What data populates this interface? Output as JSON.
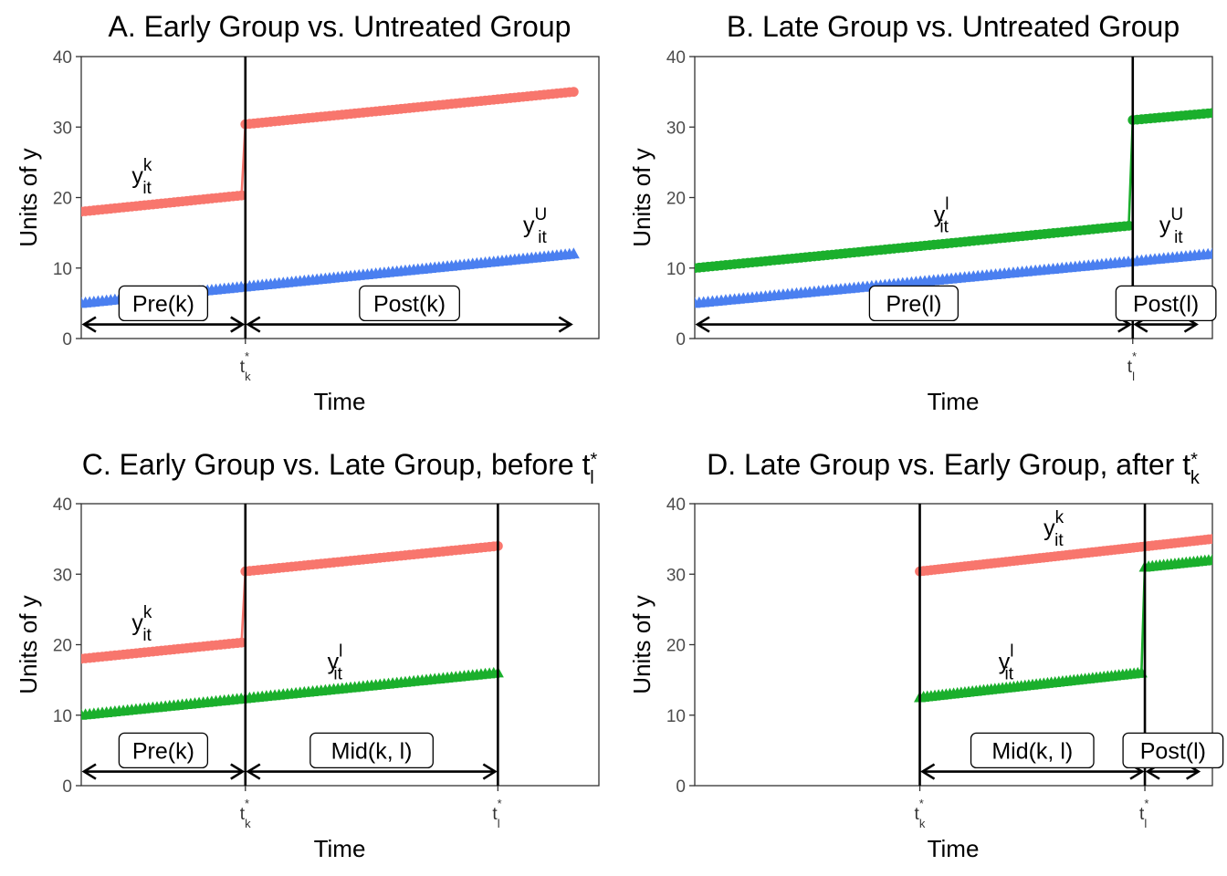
{
  "colors": {
    "early": "#F8766D",
    "late": "#1AAF2C",
    "untreated": "#4A7FF0"
  },
  "panels": [
    {
      "id": "A",
      "title": "A. Early Group vs. Untreated Group",
      "title_sup": "",
      "title_sub": "",
      "xlabel": "Time",
      "ylabel": "Units of y",
      "tick_marks": [
        {
          "t": 13,
          "main": "t",
          "sup": "*",
          "sub": "k"
        }
      ],
      "vlines": [
        13
      ]
    },
    {
      "id": "B",
      "title": "B. Late Group vs. Untreated Group",
      "title_sup": "",
      "title_sub": "",
      "xlabel": "Time",
      "ylabel": "Units of y",
      "tick_marks": [
        {
          "t": 33,
          "main": "t",
          "sup": "*",
          "sub": "l"
        }
      ],
      "vlines": [
        33
      ]
    },
    {
      "id": "C",
      "title": "C. Early Group vs. Late Group, before t",
      "title_sup": "*",
      "title_sub": "l",
      "xlabel": "Time",
      "ylabel": "Units of y",
      "tick_marks": [
        {
          "t": 13,
          "main": "t",
          "sup": "*",
          "sub": "k"
        },
        {
          "t": 33,
          "main": "t",
          "sup": "*",
          "sub": "l"
        }
      ],
      "vlines": [
        13,
        33
      ]
    },
    {
      "id": "D",
      "title": "D. Late Group vs. Early Group, after t",
      "title_sup": "*",
      "title_sub": "k",
      "xlabel": "Time",
      "ylabel": "Units of y",
      "tick_marks": [
        {
          "t": 13,
          "main": "t",
          "sup": "*",
          "sub": "k"
        },
        {
          "t": 33,
          "main": "t",
          "sup": "*",
          "sub": "l"
        }
      ],
      "vlines": [
        13,
        33
      ]
    }
  ],
  "chart_data": [
    {
      "type": "line",
      "title": "A. Early Group vs. Untreated Group",
      "xlabel": "Time",
      "ylabel": "Units of y",
      "xlim": [
        0,
        41
      ],
      "ylim": [
        0,
        40
      ],
      "y_ticks": [
        0,
        10,
        20,
        30,
        40
      ],
      "grid": false,
      "series": [
        {
          "group": "early",
          "marker": "circle",
          "label": "y",
          "label_sub": "it",
          "label_sup": "k",
          "label_at": [
            4,
            22
          ],
          "points": [
            [
              0,
              18
            ],
            [
              12.7,
              20.3
            ],
            [
              13,
              30.4
            ],
            [
              39,
              35
            ]
          ]
        },
        {
          "group": "untreated",
          "marker": "triangle",
          "label": "y",
          "label_sub": "it",
          "label_sup": "U",
          "label_at": [
            35,
            15
          ],
          "points": [
            [
              0,
              5
            ],
            [
              39,
              12
            ]
          ]
        }
      ],
      "periods": [
        {
          "label": "Pre(k)",
          "from": 0,
          "to": 13
        },
        {
          "label": "Post(k)",
          "from": 13,
          "to": 39
        }
      ]
    },
    {
      "type": "line",
      "title": "B. Late Group vs. Untreated Group",
      "xlabel": "Time",
      "ylabel": "Units of y",
      "xlim": [
        0,
        39
      ],
      "ylim": [
        0,
        40
      ],
      "y_ticks": [
        0,
        10,
        20,
        30,
        40
      ],
      "grid": false,
      "series": [
        {
          "group": "late",
          "marker": "circle",
          "label": "y",
          "label_sub": "it",
          "label_sup": "l",
          "label_at": [
            18,
            16.5
          ],
          "points": [
            [
              0,
              10
            ],
            [
              32.7,
              16
            ],
            [
              33,
              31
            ],
            [
              39,
              32
            ]
          ]
        },
        {
          "group": "untreated",
          "marker": "triangle",
          "label": "y",
          "label_sub": "it",
          "label_sup": "U",
          "label_at": [
            35,
            15
          ],
          "points": [
            [
              0,
              5
            ],
            [
              39,
              12
            ]
          ]
        }
      ],
      "periods": [
        {
          "label": "Pre(l)",
          "from": 0,
          "to": 33
        },
        {
          "label": "Post(l)",
          "from": 33,
          "to": 38
        }
      ]
    },
    {
      "type": "line",
      "title": "C. Early Group vs. Late Group, before t*l",
      "xlabel": "Time",
      "ylabel": "Units of y",
      "xlim": [
        0,
        41
      ],
      "ylim": [
        0,
        40
      ],
      "y_ticks": [
        0,
        10,
        20,
        30,
        40
      ],
      "grid": false,
      "series": [
        {
          "group": "early",
          "marker": "circle",
          "label": "y",
          "label_sub": "it",
          "label_sup": "k",
          "label_at": [
            4,
            22
          ],
          "points": [
            [
              0,
              18
            ],
            [
              12.7,
              20.3
            ],
            [
              13,
              30.4
            ],
            [
              33,
              34
            ]
          ]
        },
        {
          "group": "late",
          "marker": "triangle",
          "label": "y",
          "label_sub": "it",
          "label_sup": "l",
          "label_at": [
            19.5,
            16.5
          ],
          "points": [
            [
              0,
              10
            ],
            [
              33,
              16
            ]
          ]
        }
      ],
      "periods": [
        {
          "label": "Pre(k)",
          "from": 0,
          "to": 13
        },
        {
          "label": "Mid(k, l)",
          "from": 13,
          "to": 33
        }
      ]
    },
    {
      "type": "line",
      "title": "D. Late Group vs. Early Group, after t*k",
      "xlabel": "Time",
      "ylabel": "Units of y",
      "xlim": [
        -7,
        39
      ],
      "ylim": [
        0,
        40
      ],
      "y_ticks": [
        0,
        10,
        20,
        30,
        40
      ],
      "grid": false,
      "series": [
        {
          "group": "early",
          "marker": "circle",
          "label": "y",
          "label_sub": "it",
          "label_sup": "k",
          "label_at": [
            24,
            35.5
          ],
          "points": [
            [
              13,
              30.4
            ],
            [
              39,
              35
            ]
          ]
        },
        {
          "group": "late",
          "marker": "triangle",
          "label": "y",
          "label_sub": "it",
          "label_sup": "l",
          "label_at": [
            20,
            16.5
          ],
          "points": [
            [
              13,
              12.5
            ],
            [
              32.7,
              16
            ],
            [
              33,
              31
            ],
            [
              39,
              32
            ]
          ]
        }
      ],
      "periods": [
        {
          "label": "Mid(k, l)",
          "from": 13,
          "to": 33
        },
        {
          "label": "Post(l)",
          "from": 33,
          "to": 38
        }
      ]
    }
  ]
}
